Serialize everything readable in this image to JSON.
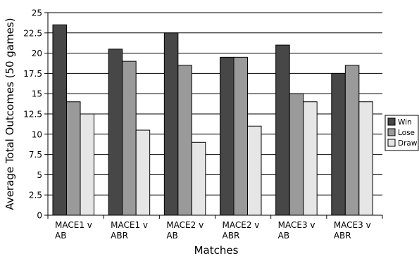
{
  "chart_data": {
    "type": "bar",
    "title": "",
    "xlabel": "Matches",
    "ylabel": "Average Total Outcomes (50 games)",
    "ylim": [
      0,
      25
    ],
    "yticks": [
      "0",
      "2.5",
      "5",
      "7.5",
      "10",
      "12.5",
      "15",
      "17.5",
      "20",
      "22.5",
      "25"
    ],
    "categories": [
      [
        "MACE1 v",
        "AB"
      ],
      [
        "MACE1 v",
        "ABR"
      ],
      [
        "MACE2 v",
        "AB"
      ],
      [
        "MACE2 v",
        "ABR"
      ],
      [
        "MACE3 v",
        "AB"
      ],
      [
        "MACE3 v",
        "ABR"
      ]
    ],
    "series": [
      {
        "name": "Win",
        "color": "#474747",
        "values": [
          23.5,
          20.5,
          22.5,
          19.5,
          21.0,
          17.5
        ]
      },
      {
        "name": "Lose",
        "color": "#9a9a9a",
        "values": [
          14.0,
          19.0,
          18.5,
          19.5,
          15.0,
          18.5
        ]
      },
      {
        "name": "Draw",
        "color": "#e6e6e6",
        "values": [
          12.5,
          10.5,
          9.0,
          11.0,
          14.0,
          14.0
        ]
      }
    ],
    "grid": true,
    "legend_position": "right"
  }
}
